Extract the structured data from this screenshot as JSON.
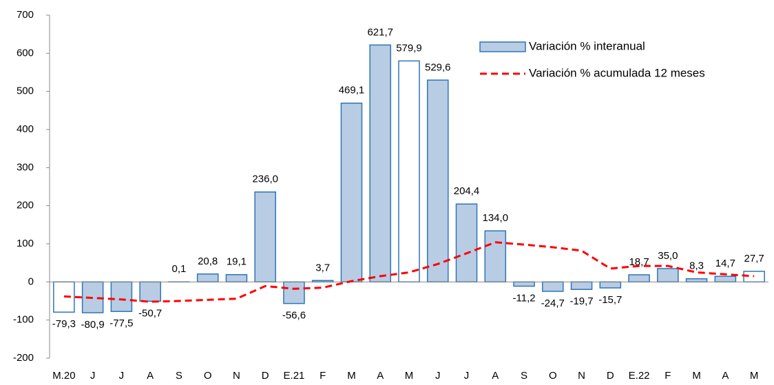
{
  "chart_data": {
    "type": "bar-line",
    "categories": [
      "M.20",
      "J",
      "J",
      "A",
      "S",
      "O",
      "N",
      "D",
      "E.21",
      "F",
      "M",
      "A",
      "M",
      "J",
      "J",
      "A",
      "S",
      "O",
      "N",
      "D",
      "E.22",
      "F",
      "M",
      "A",
      "M"
    ],
    "series": [
      {
        "name": "Variación % interanual",
        "type": "bar",
        "color": "#b8cce4",
        "stroke": "#2e75b6",
        "colors": [
          "#ffffff",
          "#b8cce4",
          "#b8cce4",
          "#b8cce4",
          "#b8cce4",
          "#b8cce4",
          "#b8cce4",
          "#b8cce4",
          "#b8cce4",
          "#b8cce4",
          "#b8cce4",
          "#b8cce4",
          "#ffffff",
          "#b8cce4",
          "#b8cce4",
          "#b8cce4",
          "#b8cce4",
          "#b8cce4",
          "#b8cce4",
          "#b8cce4",
          "#b8cce4",
          "#b8cce4",
          "#b8cce4",
          "#b8cce4",
          "#ffffff"
        ],
        "values": [
          -79.3,
          -80.9,
          -77.5,
          -50.7,
          0.1,
          20.8,
          19.1,
          236.0,
          -56.6,
          3.7,
          469.1,
          621.7,
          579.9,
          529.6,
          204.4,
          134.0,
          -11.2,
          -24.7,
          -19.7,
          -15.7,
          18.7,
          35.0,
          8.3,
          14.7,
          27.7
        ],
        "value_labels": [
          "-79,3",
          "-80,9",
          "-77,5",
          "-50,7",
          "0,1",
          "20,8",
          "19,1",
          "236,0",
          "-56,6",
          "3,7",
          "469,1",
          "621,7",
          "579,9",
          "529,6",
          "204,4",
          "134,0",
          "-11,2",
          "-24,7",
          "-19,7",
          "-15,7",
          "18,7",
          "35,0",
          "8,3",
          "14,7",
          "27,7"
        ]
      },
      {
        "name": "Variación % acumulada 12 meses",
        "type": "line",
        "color": "#ff0000",
        "dashed": true,
        "values": [
          -38,
          -42,
          -46,
          -52,
          -50,
          -47,
          -44,
          -11,
          -18,
          -15,
          2,
          15,
          25,
          47,
          75,
          104,
          98,
          91,
          82,
          35,
          42,
          42,
          25,
          20,
          15
        ]
      }
    ],
    "ylim": [
      -200,
      700
    ],
    "yticks": [
      -200,
      -100,
      0,
      100,
      200,
      300,
      400,
      500,
      600,
      700
    ],
    "grid": false,
    "legend": "top-right"
  }
}
